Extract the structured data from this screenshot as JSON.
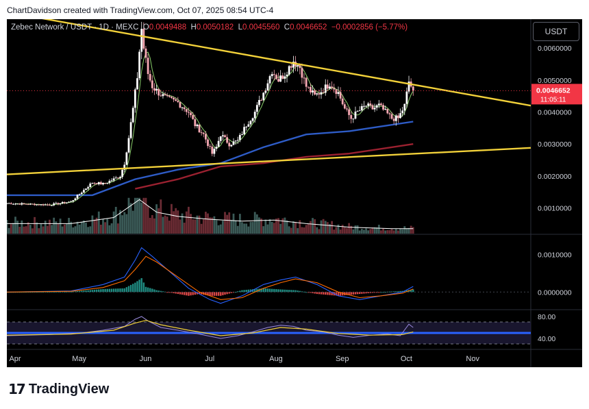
{
  "header": {
    "caption": "ChartDavidson created with TradingView.com, Oct 07, 2025 08:54 UTC-4"
  },
  "legend": {
    "symbol": "Zebec Network / USDT · 1D · MEXC",
    "o_label": "O",
    "o_value": "0.0049488",
    "h_label": "H",
    "h_value": "0.0050182",
    "l_label": "L",
    "l_value": "0.0045560",
    "c_label": "C",
    "c_value": "0.0046652",
    "change": "−0.0002856 (−5.77%)"
  },
  "toolbar": {
    "currency_label": "USDT"
  },
  "brand": {
    "name": "TradingView",
    "logo_icon": "tradingview-logo-icon"
  },
  "colors": {
    "up": "#ffffff",
    "down": "#f7a9b4",
    "trendline": "#f2d13a",
    "ma_blue": "#2e5cc7",
    "ma_red": "#9b2130",
    "ma_green": "#8bd06b",
    "volume_ma": "#ffffff",
    "macd": "#2962ff",
    "signal": "#ff6d00",
    "rsi": "#f2d13a",
    "rsi_band": "#2962ff",
    "price_tag": "#f23645"
  },
  "chart_data": [
    {
      "type": "candlestick",
      "title": "Zebec Network / USDT · 1D · MEXC",
      "ylim": [
        0.0002,
        0.0069
      ],
      "y_ticks": [
        "0.0060000",
        "0.0050000",
        "0.0040000",
        "0.0030000",
        "0.0020000",
        "0.0010000"
      ],
      "y_tick_values": [
        0.006,
        0.005,
        0.004,
        0.003,
        0.002,
        0.001
      ],
      "x_ticks": [
        "Apr",
        "May",
        "Jun",
        "Jul",
        "Aug",
        "Sep",
        "Oct",
        "Nov"
      ],
      "x_tick_days": [
        0,
        30,
        61,
        91,
        122,
        153,
        183,
        214
      ],
      "xlim_days": [
        0,
        245
      ],
      "last_price": "0.0046652",
      "countdown": "11:05:11",
      "anchors_day_close": [
        [
          0,
          0.00115
        ],
        [
          10,
          0.00112
        ],
        [
          20,
          0.0011
        ],
        [
          30,
          0.0012
        ],
        [
          35,
          0.0015
        ],
        [
          40,
          0.0018
        ],
        [
          45,
          0.00175
        ],
        [
          50,
          0.0019
        ],
        [
          53,
          0.002
        ],
        [
          55,
          0.0024
        ],
        [
          57,
          0.0032
        ],
        [
          59,
          0.0041
        ],
        [
          61,
          0.0051
        ],
        [
          62,
          0.0059
        ],
        [
          63,
          0.0066
        ],
        [
          64,
          0.006
        ],
        [
          66,
          0.0052
        ],
        [
          68,
          0.0048
        ],
        [
          71,
          0.0046
        ],
        [
          75,
          0.0044
        ],
        [
          80,
          0.0043
        ],
        [
          85,
          0.004
        ],
        [
          88,
          0.0036
        ],
        [
          92,
          0.0033
        ],
        [
          96,
          0.0027
        ],
        [
          98,
          0.0029
        ],
        [
          100,
          0.0033
        ],
        [
          104,
          0.003
        ],
        [
          108,
          0.0031
        ],
        [
          112,
          0.0036
        ],
        [
          116,
          0.004
        ],
        [
          120,
          0.0046
        ],
        [
          124,
          0.0053
        ],
        [
          127,
          0.005
        ],
        [
          130,
          0.0052
        ],
        [
          134,
          0.0056
        ],
        [
          137,
          0.0054
        ],
        [
          140,
          0.0048
        ],
        [
          144,
          0.0045
        ],
        [
          148,
          0.0047
        ],
        [
          151,
          0.0049
        ],
        [
          155,
          0.0046
        ],
        [
          158,
          0.0041
        ],
        [
          161,
          0.0038
        ],
        [
          164,
          0.004
        ],
        [
          168,
          0.0042
        ],
        [
          171,
          0.0041
        ],
        [
          174,
          0.0042
        ],
        [
          177,
          0.004
        ],
        [
          180,
          0.0038
        ],
        [
          183,
          0.0038
        ],
        [
          186,
          0.0042
        ],
        [
          188,
          0.00495
        ],
        [
          190,
          0.00467
        ]
      ],
      "trendlines": [
        {
          "name": "descending-resistance",
          "points": [
            [
              -15,
              0.0073
            ],
            [
              245,
              0.0042
            ]
          ]
        },
        {
          "name": "ascending-support",
          "points": [
            [
              0,
              0.00205
            ],
            [
              245,
              0.00288
            ]
          ]
        }
      ],
      "moving_averages": [
        {
          "name": "MA slow blue",
          "points": [
            [
              0,
              0.0014
            ],
            [
              40,
              0.0014
            ],
            [
              60,
              0.0019
            ],
            [
              80,
              0.0022
            ],
            [
              100,
              0.0024
            ],
            [
              120,
              0.0029
            ],
            [
              140,
              0.0033
            ],
            [
              160,
              0.0034
            ],
            [
              180,
              0.0036
            ],
            [
              190,
              0.0037
            ]
          ]
        },
        {
          "name": "MA slow red",
          "points": [
            [
              60,
              0.0016
            ],
            [
              80,
              0.0019
            ],
            [
              100,
              0.0023
            ],
            [
              120,
              0.0024
            ],
            [
              140,
              0.0026
            ],
            [
              160,
              0.0027
            ],
            [
              180,
              0.0029
            ],
            [
              190,
              0.003
            ]
          ]
        }
      ]
    },
    {
      "type": "bar",
      "title": "",
      "note": "volume histogram with volume moving average",
      "volume_ma": [
        [
          0,
          0.28
        ],
        [
          30,
          0.28
        ],
        [
          50,
          0.45
        ],
        [
          62,
          0.95
        ],
        [
          70,
          0.6
        ],
        [
          80,
          0.48
        ],
        [
          95,
          0.4
        ],
        [
          110,
          0.35
        ],
        [
          125,
          0.38
        ],
        [
          140,
          0.28
        ],
        [
          160,
          0.18
        ],
        [
          180,
          0.14
        ],
        [
          190,
          0.14
        ]
      ]
    },
    {
      "type": "line",
      "title": "",
      "note": "MACD panel",
      "ylim": [
        -0.00045,
        0.0015
      ],
      "y_ticks": [
        "0.0010000",
        "0.0000000"
      ],
      "y_tick_values": [
        0.001,
        0.0
      ],
      "series": [
        {
          "name": "",
          "points": [
            [
              0,
              0
            ],
            [
              30,
              3e-05
            ],
            [
              45,
              0.0002
            ],
            [
              55,
              0.0004
            ],
            [
              60,
              0.00085
            ],
            [
              63,
              0.00118
            ],
            [
              68,
              0.00095
            ],
            [
              75,
              0.0006
            ],
            [
              85,
              0.0001
            ],
            [
              95,
              -0.0002
            ],
            [
              100,
              -0.0003
            ],
            [
              110,
              -0.0001
            ],
            [
              120,
              0.0002
            ],
            [
              128,
              0.00032
            ],
            [
              135,
              0.0004
            ],
            [
              145,
              0.0002
            ],
            [
              155,
              -0.0001
            ],
            [
              165,
              -0.0002
            ],
            [
              175,
              -0.0001
            ],
            [
              185,
              0.0
            ],
            [
              190,
              0.00015
            ]
          ]
        },
        {
          "name": "",
          "points": [
            [
              0,
              0
            ],
            [
              30,
              2e-05
            ],
            [
              45,
              0.00012
            ],
            [
              55,
              0.0003
            ],
            [
              60,
              0.0006
            ],
            [
              65,
              0.00095
            ],
            [
              70,
              0.0008
            ],
            [
              80,
              0.0004
            ],
            [
              90,
              0.0
            ],
            [
              100,
              -0.0002
            ],
            [
              110,
              -0.00015
            ],
            [
              120,
              0.0001
            ],
            [
              128,
              0.00025
            ],
            [
              135,
              0.00035
            ],
            [
              145,
              0.00025
            ],
            [
              155,
              0.0
            ],
            [
              165,
              -0.00015
            ],
            [
              175,
              -0.0001
            ],
            [
              185,
              -3e-05
            ],
            [
              190,
              8e-05
            ]
          ]
        }
      ]
    },
    {
      "type": "line",
      "title": "",
      "note": "RSI panel",
      "ylim": [
        20,
        90
      ],
      "y_ticks": [
        "80.00",
        "40.00"
      ],
      "y_tick_values": [
        80,
        40
      ],
      "bands": [
        70,
        30
      ],
      "series": [
        {
          "name": "",
          "points": [
            [
              0,
              45
            ],
            [
              20,
              47
            ],
            [
              35,
              50
            ],
            [
              45,
              55
            ],
            [
              55,
              62
            ],
            [
              60,
              75
            ],
            [
              63,
              80
            ],
            [
              66,
              72
            ],
            [
              72,
              60
            ],
            [
              80,
              55
            ],
            [
              90,
              48
            ],
            [
              100,
              40
            ],
            [
              108,
              45
            ],
            [
              115,
              52
            ],
            [
              122,
              60
            ],
            [
              128,
              64
            ],
            [
              134,
              62
            ],
            [
              140,
              55
            ],
            [
              148,
              52
            ],
            [
              155,
              46
            ],
            [
              162,
              42
            ],
            [
              170,
              46
            ],
            [
              178,
              48
            ],
            [
              184,
              45
            ],
            [
              188,
              66
            ],
            [
              190,
              60
            ]
          ]
        },
        {
          "name": "",
          "points": [
            [
              0,
              46
            ],
            [
              30,
              48
            ],
            [
              50,
              55
            ],
            [
              60,
              68
            ],
            [
              65,
              73
            ],
            [
              72,
              65
            ],
            [
              85,
              55
            ],
            [
              100,
              45
            ],
            [
              115,
              50
            ],
            [
              128,
              60
            ],
            [
              140,
              57
            ],
            [
              155,
              49
            ],
            [
              170,
              46
            ],
            [
              185,
              47
            ],
            [
              190,
              52
            ]
          ]
        }
      ]
    }
  ]
}
